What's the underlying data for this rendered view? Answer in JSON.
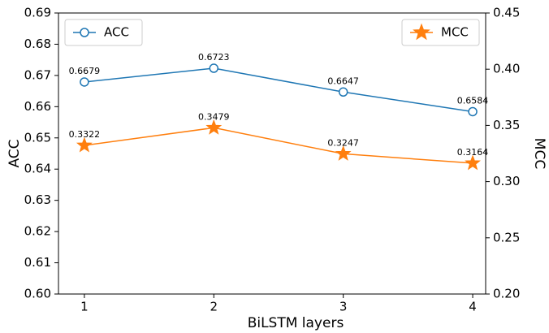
{
  "chart_data": {
    "type": "line",
    "xlabel": "BiLSTM layers",
    "ylabel": "ACC",
    "y2label": "MCC",
    "x": [
      1,
      2,
      3,
      4
    ],
    "xlim": [
      0.8,
      4.1
    ],
    "xticks": [
      1,
      2,
      3,
      4
    ],
    "ylim": [
      0.6,
      0.69
    ],
    "yticks": [
      {
        "value": 0.6,
        "label": "0.60"
      },
      {
        "value": 0.61,
        "label": "0.61"
      },
      {
        "value": 0.62,
        "label": "0.62"
      },
      {
        "value": 0.63,
        "label": "0.63"
      },
      {
        "value": 0.64,
        "label": "0.64"
      },
      {
        "value": 0.65,
        "label": "0.65"
      },
      {
        "value": 0.66,
        "label": "0.66"
      },
      {
        "value": 0.67,
        "label": "0.67"
      },
      {
        "value": 0.68,
        "label": "0.68"
      },
      {
        "value": 0.69,
        "label": "0.69"
      }
    ],
    "y2lim": [
      0.2,
      0.45
    ],
    "y2ticks": [
      {
        "value": 0.2,
        "label": "0.20"
      },
      {
        "value": 0.25,
        "label": "0.25"
      },
      {
        "value": 0.3,
        "label": "0.30"
      },
      {
        "value": 0.35,
        "label": "0.35"
      },
      {
        "value": 0.4,
        "label": "0.40"
      },
      {
        "value": 0.45,
        "label": "0.45"
      }
    ],
    "series": [
      {
        "name": "ACC",
        "color": "#1f77b4",
        "marker": "circle",
        "legend": "upper left",
        "values": [
          0.6679,
          0.6723,
          0.6647,
          0.6584
        ]
      },
      {
        "name": "MCC",
        "color": "#ff7f0e",
        "marker": "star",
        "legend": "upper right",
        "axis": "y2",
        "values": [
          0.3322,
          0.3479,
          0.3247,
          0.3164
        ]
      }
    ]
  }
}
